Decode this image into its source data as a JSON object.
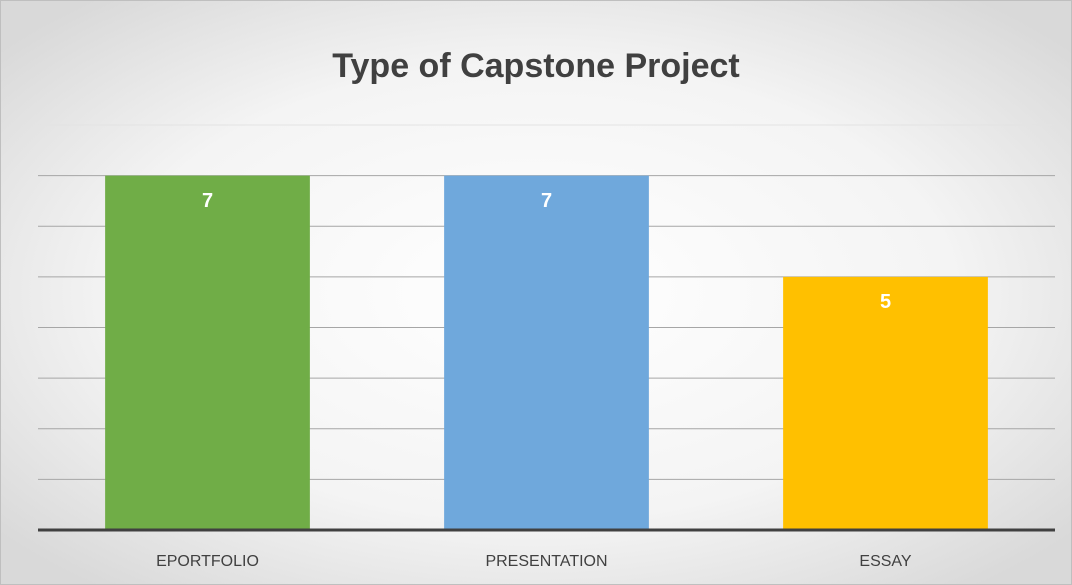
{
  "chart_data": {
    "type": "bar",
    "title": "Type of Capstone Project",
    "categories": [
      "EPORTFOLIO",
      "PRESENTATION",
      "ESSAY"
    ],
    "values": [
      7,
      7,
      5
    ],
    "colors": [
      "#70ad47",
      "#6fa8dc",
      "#ffc000"
    ],
    "ylim": [
      0,
      8
    ],
    "yticks": [
      0,
      1,
      2,
      3,
      4,
      5,
      6,
      7,
      8
    ],
    "grid": true
  }
}
